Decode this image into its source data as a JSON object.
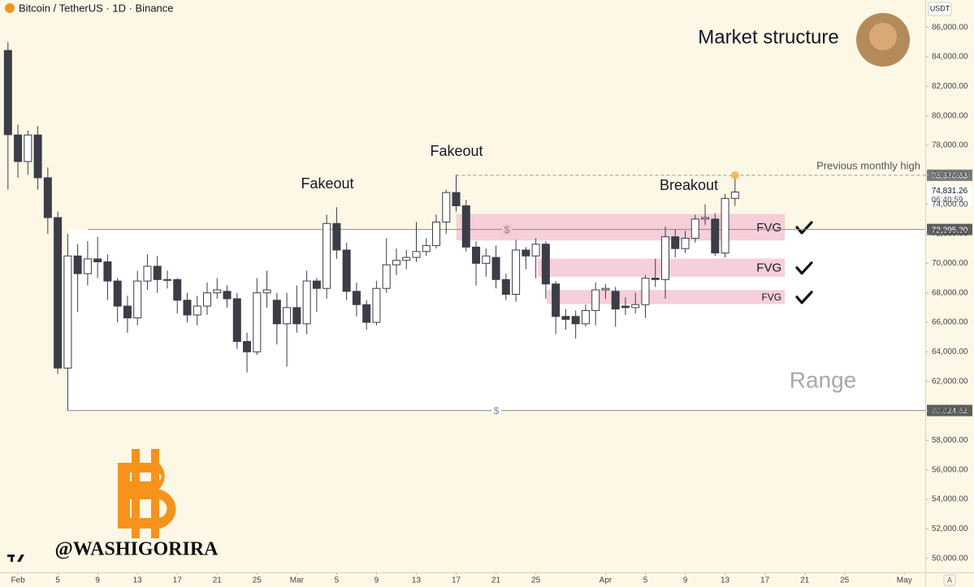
{
  "header": "Bitcoin / TetherUS · 1D · Binance",
  "currency": "USDT",
  "corner_letter": "A",
  "watermark": "@WASHIGORIRA",
  "chart_data": {
    "type": "candlestick",
    "title": "Market structure",
    "up_color": "#ffffff",
    "down_color": "#3b3d47",
    "x": [
      -1,
      0,
      1,
      2,
      3,
      4,
      5,
      6,
      7,
      8,
      9,
      10,
      11,
      12,
      13,
      14,
      15,
      16,
      17,
      18,
      19,
      20,
      21,
      22,
      23,
      24,
      25,
      26,
      27,
      28,
      29,
      30,
      31,
      32,
      33,
      34,
      35,
      36,
      37,
      38,
      39,
      40,
      41,
      42,
      43,
      44,
      45,
      46,
      47,
      48,
      49,
      50,
      51,
      52,
      53,
      54,
      55,
      56,
      57,
      58,
      59,
      60,
      61,
      62,
      63,
      64,
      65,
      66,
      67,
      68,
      69,
      70,
      71,
      72
    ],
    "open": [
      84430,
      78700,
      76900,
      78700,
      75800,
      73100,
      62900,
      70500,
      69300,
      70300,
      70100,
      68800,
      67100,
      66300,
      68800,
      69800,
      68900,
      68900,
      67500,
      66500,
      67100,
      68000,
      68100,
      67600,
      64700,
      64000,
      68000,
      67500,
      65900,
      67000,
      65900,
      68800,
      68300,
      72700,
      70900,
      68100,
      67200,
      66000,
      68300,
      69900,
      70200,
      70400,
      70800,
      71200,
      72800,
      74800,
      73900,
      71100,
      70000,
      70400,
      68900,
      67900,
      70900,
      70500,
      71300,
      68600,
      66400,
      66400,
      65900,
      66800,
      68200,
      68100,
      67100,
      67000,
      67200,
      69000,
      68900,
      71800,
      71000,
      71700,
      73000,
      73000,
      70700,
      74400
    ],
    "high": [
      85000,
      79400,
      79000,
      79300,
      76500,
      73500,
      72000,
      71300,
      71500,
      71800,
      70600,
      69000,
      67800,
      69500,
      70600,
      70500,
      69500,
      69000,
      68000,
      67800,
      68700,
      69000,
      68500,
      68000,
      65300,
      69000,
      69500,
      68000,
      68000,
      68500,
      69500,
      69000,
      73300,
      73800,
      71400,
      68700,
      67500,
      68800,
      71700,
      71000,
      70900,
      72800,
      71700,
      73300,
      75000,
      76000,
      74300,
      71500,
      71000,
      71200,
      69300,
      71600,
      71100,
      71700,
      71500,
      68800,
      66900,
      66800,
      67200,
      68700,
      68600,
      68400,
      67700,
      68000,
      69200,
      70300,
      72500,
      72300,
      72200,
      73300,
      74000,
      73400,
      74700,
      75970.63
    ],
    "low": [
      75000,
      75800,
      76000,
      75000,
      72000,
      62500,
      60024.62,
      66700,
      68500,
      69000,
      67500,
      66000,
      65300,
      65800,
      68200,
      68000,
      68300,
      66600,
      66000,
      65800,
      66500,
      67600,
      67000,
      64200,
      62600,
      63800,
      67000,
      64500,
      63000,
      65300,
      65200,
      66700,
      67600,
      70300,
      67500,
      66400,
      65500,
      65800,
      68000,
      69200,
      69600,
      70100,
      70500,
      71000,
      72000,
      73500,
      70800,
      68500,
      69100,
      68300,
      67500,
      67400,
      69600,
      69000,
      67600,
      65200,
      65500,
      64900,
      65700,
      65800,
      67600,
      65700,
      66500,
      66600,
      66300,
      68400,
      67600,
      70400,
      70700,
      71400,
      72600,
      70500,
      70400,
      73900
    ],
    "close": [
      78720,
      76900,
      78700,
      75800,
      73100,
      62900,
      70500,
      69300,
      70300,
      70100,
      68800,
      67100,
      66300,
      68800,
      69800,
      68900,
      68900,
      67500,
      66500,
      67100,
      68000,
      68200,
      67600,
      64700,
      64000,
      68000,
      68200,
      65900,
      67000,
      65900,
      68800,
      68300,
      72700,
      70900,
      68100,
      67200,
      66000,
      68300,
      69900,
      70200,
      70400,
      70800,
      71200,
      72800,
      74800,
      73900,
      71100,
      70000,
      70500,
      68900,
      67900,
      70900,
      70500,
      71300,
      68600,
      66400,
      66200,
      65900,
      66800,
      68200,
      68300,
      66900,
      67000,
      67200,
      69000,
      68900,
      71800,
      71000,
      71700,
      73000,
      73100,
      70700,
      74400,
      74831.26
    ],
    "last_value_label": "74,831.26",
    "countdown": "06:40:59",
    "xlim": [
      -1.8,
      91.1
    ],
    "ylim": [
      49050,
      87850
    ],
    "xticks": [
      {
        "value": 0,
        "label": "Feb"
      },
      {
        "value": 4,
        "label": "5"
      },
      {
        "value": 8,
        "label": "9"
      },
      {
        "value": 12,
        "label": "13"
      },
      {
        "value": 16,
        "label": "17"
      },
      {
        "value": 20,
        "label": "21"
      },
      {
        "value": 24,
        "label": "25"
      },
      {
        "value": 28,
        "label": "Mar"
      },
      {
        "value": 32,
        "label": "5"
      },
      {
        "value": 36,
        "label": "9"
      },
      {
        "value": 40,
        "label": "13"
      },
      {
        "value": 44,
        "label": "17"
      },
      {
        "value": 48,
        "label": "21"
      },
      {
        "value": 52,
        "label": "25"
      },
      {
        "value": 59,
        "label": "Apr"
      },
      {
        "value": 63,
        "label": "5"
      },
      {
        "value": 67,
        "label": "9"
      },
      {
        "value": 71,
        "label": "13"
      },
      {
        "value": 75,
        "label": "17"
      },
      {
        "value": 79,
        "label": "21"
      },
      {
        "value": 83,
        "label": "25"
      },
      {
        "value": 89,
        "label": "May"
      }
    ],
    "yticks": [
      {
        "value": 50000,
        "label": "50,000.00"
      },
      {
        "value": 52000,
        "label": "52,000.00"
      },
      {
        "value": 54000,
        "label": "54,000.00"
      },
      {
        "value": 56000,
        "label": "56,000.00"
      },
      {
        "value": 58000,
        "label": "58,000.00"
      },
      {
        "value": 60000,
        "label": "60,000.00"
      },
      {
        "value": 62000,
        "label": "62,000.00"
      },
      {
        "value": 64000,
        "label": "64,000.00"
      },
      {
        "value": 66000,
        "label": "66,000.00"
      },
      {
        "value": 68000,
        "label": "68,000.00"
      },
      {
        "value": 70000,
        "label": "70,000.00"
      },
      {
        "value": 72000,
        "label": "72,000.00"
      },
      {
        "value": 74000,
        "label": "74,000.00"
      },
      {
        "value": 76000,
        "label": "76,000.00"
      },
      {
        "value": 78000,
        "label": "78,000.00"
      },
      {
        "value": 80000,
        "label": "80,000.00"
      },
      {
        "value": 82000,
        "label": "82,000.00"
      },
      {
        "value": 84000,
        "label": "84,000.00"
      },
      {
        "value": 86000,
        "label": "86,000.00"
      }
    ],
    "levels": [
      {
        "value": 72295.2,
        "label": "72,295.20",
        "start": 7,
        "marker": "$"
      },
      {
        "value": 60024.62,
        "label": "60,024.62",
        "start": 5,
        "marker": "$"
      }
    ],
    "monthly_high": {
      "value": 75970.63,
      "label": "75,970.63",
      "start": 44,
      "text": "Previous monthly high"
    },
    "zones": [
      {
        "label": "FVG",
        "top": 73340,
        "bottom": 71550,
        "start": 44,
        "end": 77
      },
      {
        "label": "FVG",
        "top": 70320,
        "bottom": 69090,
        "start": 52.2,
        "end": 77
      },
      {
        "label": "FVG",
        "top": 68190,
        "bottom": 67240,
        "start": 53.1,
        "end": 77
      }
    ],
    "annotations": [
      "Fakeout",
      "Fakeout",
      "Breakout",
      "Range"
    ]
  }
}
